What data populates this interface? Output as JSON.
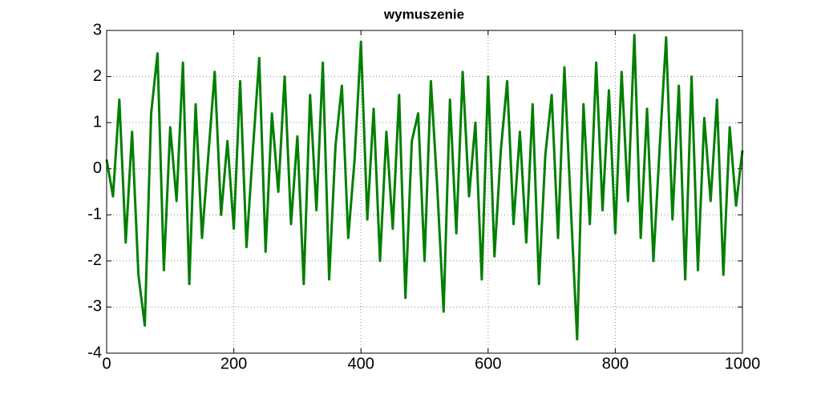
{
  "chart_data": {
    "type": "line",
    "title": "wymuszenie",
    "x": [
      0,
      10,
      20,
      30,
      40,
      50,
      60,
      70,
      80,
      90,
      100,
      110,
      120,
      130,
      140,
      150,
      160,
      170,
      180,
      190,
      200,
      210,
      220,
      230,
      240,
      250,
      260,
      270,
      280,
      290,
      300,
      310,
      320,
      330,
      340,
      350,
      360,
      370,
      380,
      390,
      400,
      410,
      420,
      430,
      440,
      450,
      460,
      470,
      480,
      490,
      500,
      510,
      520,
      530,
      540,
      550,
      560,
      570,
      580,
      590,
      600,
      610,
      620,
      630,
      640,
      650,
      660,
      670,
      680,
      690,
      700,
      710,
      720,
      730,
      740,
      750,
      760,
      770,
      780,
      790,
      800,
      810,
      820,
      830,
      840,
      850,
      860,
      870,
      880,
      890,
      900,
      910,
      920,
      930,
      940,
      950,
      960,
      970,
      980,
      990,
      1000
    ],
    "series": [
      {
        "color": "#007f00",
        "values": [
          0.2,
          -0.6,
          1.5,
          -1.6,
          0.8,
          -2.3,
          -3.4,
          1.2,
          2.5,
          -2.2,
          0.9,
          -0.7,
          2.3,
          -2.5,
          1.4,
          -1.5,
          0.3,
          2.1,
          -1.0,
          0.6,
          -1.3,
          1.9,
          -1.7,
          0.4,
          2.4,
          -1.8,
          1.2,
          -0.5,
          2.0,
          -1.2,
          0.7,
          -2.5,
          1.6,
          -0.9,
          2.3,
          -2.4,
          0.5,
          1.8,
          -1.5,
          0.2,
          2.75,
          -1.1,
          1.3,
          -2.0,
          0.8,
          -1.3,
          1.6,
          -2.8,
          0.6,
          1.2,
          -2.0,
          1.9,
          -0.4,
          -3.1,
          1.5,
          -1.4,
          2.1,
          -0.6,
          1.0,
          -2.4,
          2.0,
          -1.9,
          0.4,
          1.9,
          -1.2,
          0.8,
          -1.6,
          1.4,
          -2.5,
          0.3,
          1.6,
          -1.5,
          2.2,
          -0.8,
          -3.7,
          1.4,
          -1.2,
          2.3,
          -0.9,
          1.7,
          -1.4,
          2.1,
          -0.7,
          2.9,
          -1.5,
          1.3,
          -2.0,
          0.5,
          2.85,
          -1.1,
          1.8,
          -2.4,
          2.0,
          -2.2,
          1.1,
          -0.7,
          1.5,
          -2.3,
          0.9,
          -0.8,
          0.4
        ]
      }
    ],
    "xlim": [
      0,
      1000
    ],
    "xticks": [
      0,
      200,
      400,
      600,
      800,
      1000
    ],
    "ylim": [
      -4,
      3
    ],
    "yticks": [
      -4,
      -3,
      -2,
      -1,
      0,
      1,
      2,
      3
    ],
    "grid": true
  }
}
